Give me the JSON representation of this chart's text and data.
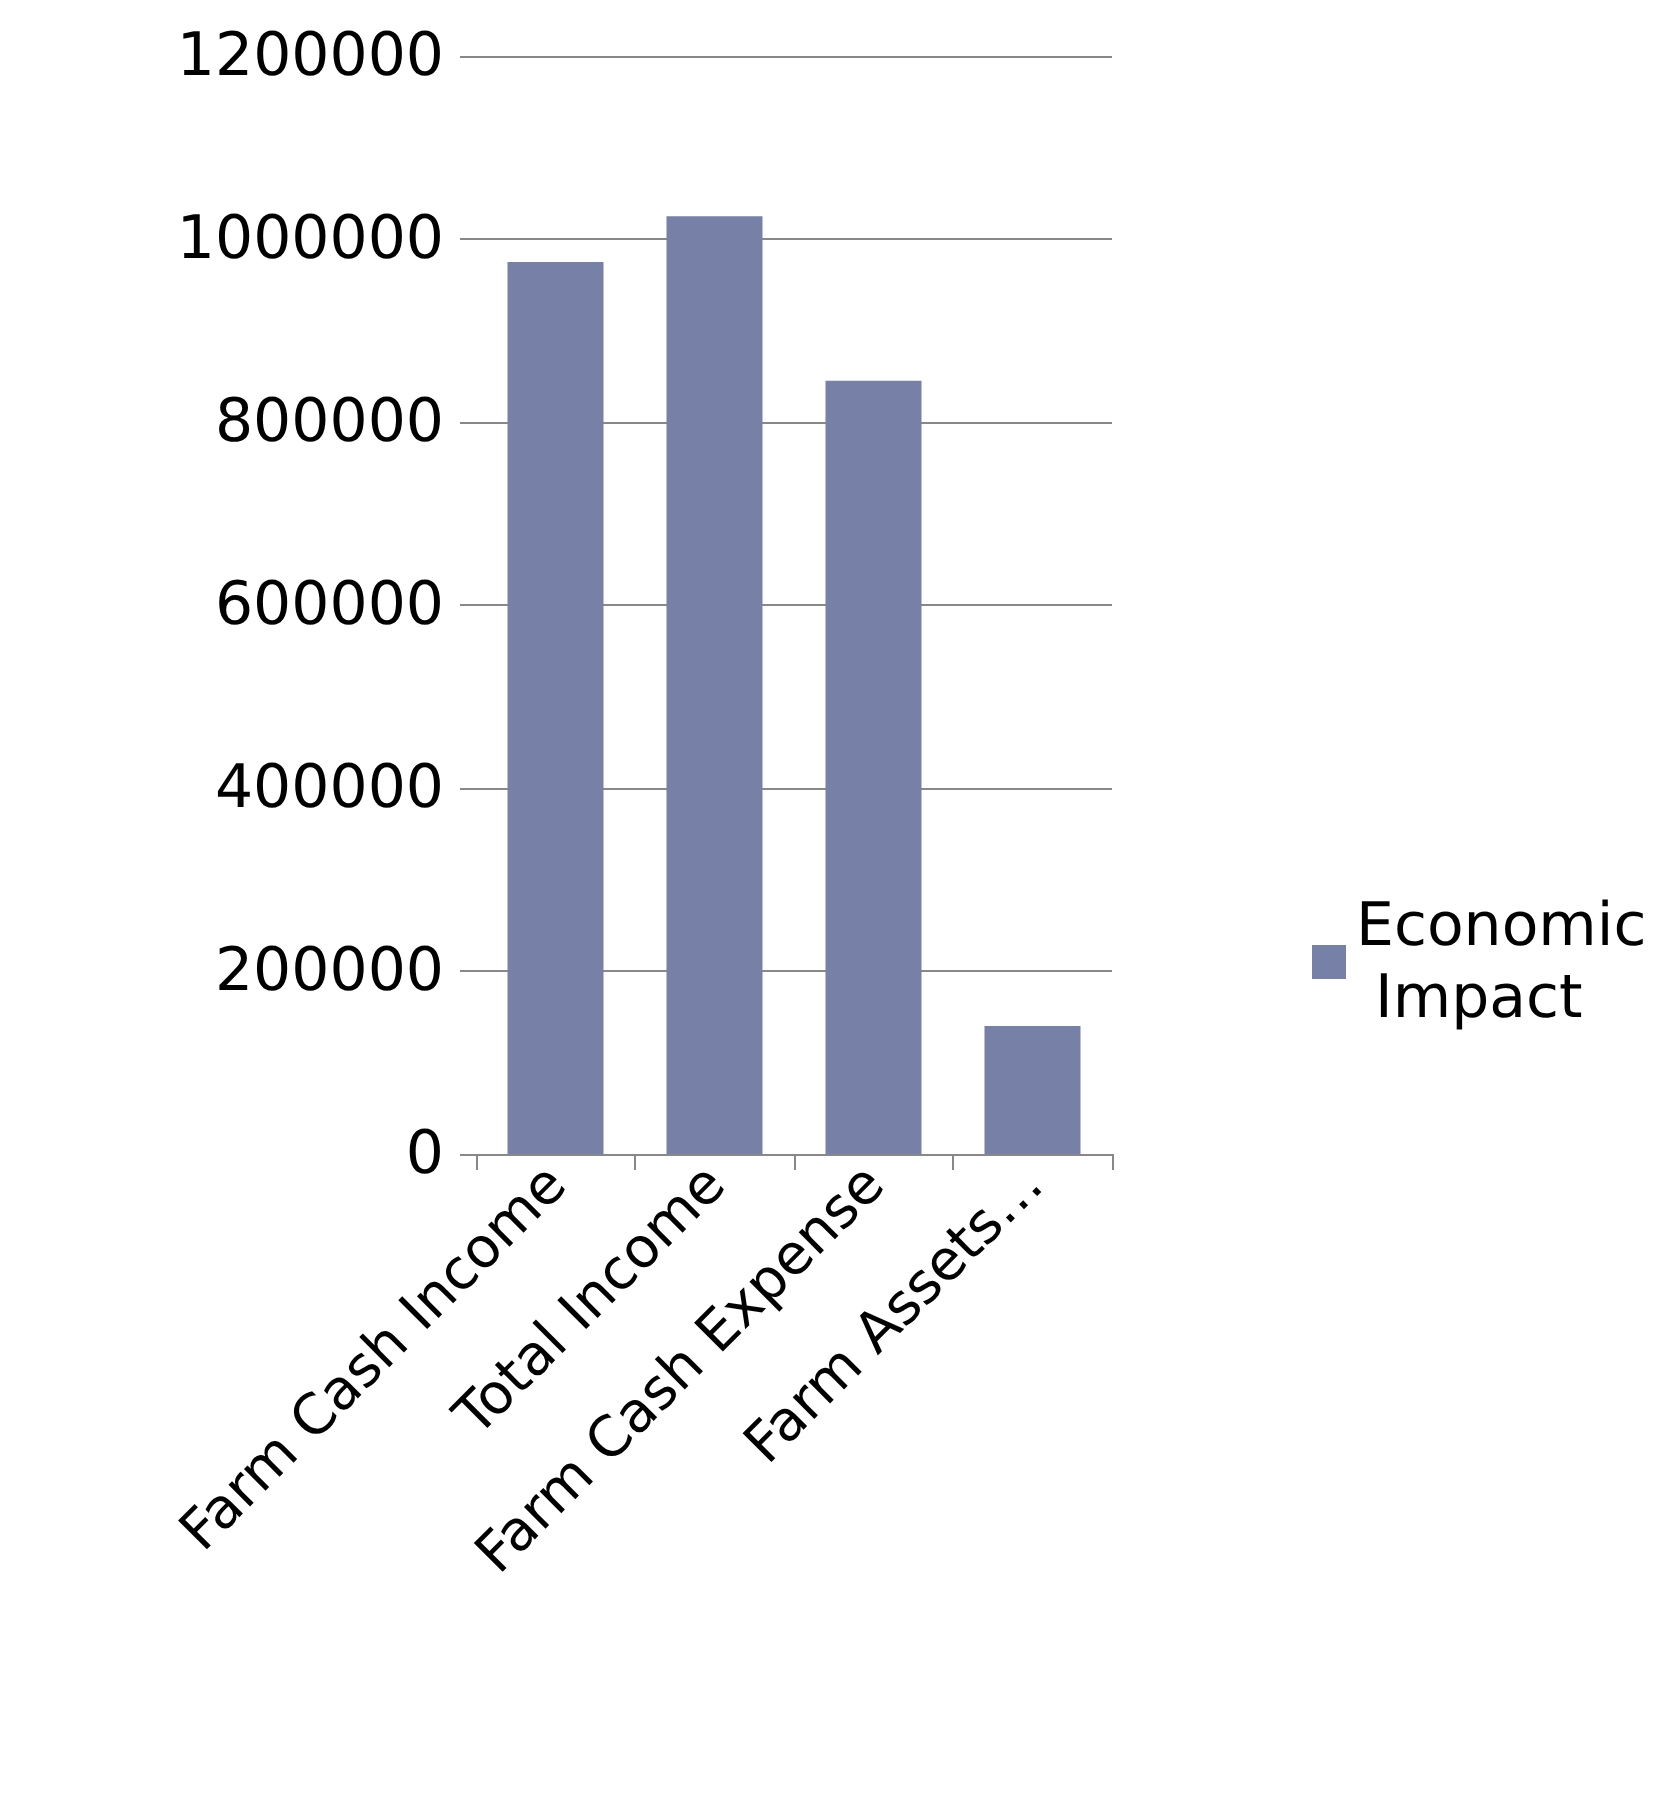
{
  "chart_data": {
    "type": "bar",
    "categories": [
      "Farm Cash Income",
      "Total Income",
      "Farm Cash Expense",
      "Farm Assets…"
    ],
    "series": [
      {
        "name": "Economic Impact",
        "color": "#7780a6",
        "values": [
          975000,
          1025000,
          845000,
          140000
        ]
      }
    ],
    "ylim": [
      0,
      1200000
    ],
    "yticks": [
      0,
      200000,
      400000,
      600000,
      800000,
      1000000,
      1200000
    ],
    "grid": "y",
    "legend": "right"
  }
}
